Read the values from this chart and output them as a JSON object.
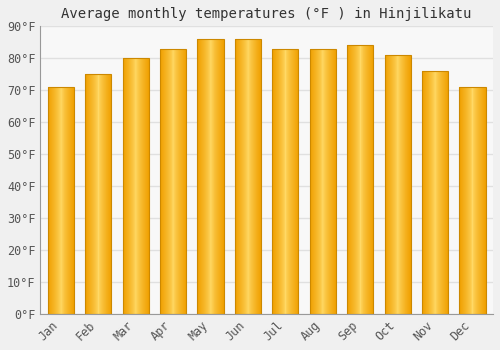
{
  "title": "Average monthly temperatures (°F ) in Hinjilikatu",
  "months": [
    "Jan",
    "Feb",
    "Mar",
    "Apr",
    "May",
    "Jun",
    "Jul",
    "Aug",
    "Sep",
    "Oct",
    "Nov",
    "Dec"
  ],
  "values": [
    71,
    75,
    80,
    83,
    86,
    86,
    83,
    83,
    84,
    81,
    76,
    71
  ],
  "bar_color_center": "#FFD966",
  "bar_color_edge": "#F0A500",
  "ylim": [
    0,
    90
  ],
  "yticks": [
    0,
    10,
    20,
    30,
    40,
    50,
    60,
    70,
    80,
    90
  ],
  "ytick_labels": [
    "0°F",
    "10°F",
    "20°F",
    "30°F",
    "40°F",
    "50°F",
    "60°F",
    "70°F",
    "80°F",
    "90°F"
  ],
  "background_color": "#f0f0f0",
  "plot_bg_color": "#f8f8f8",
  "grid_color": "#e0e0e0",
  "spine_color": "#999999",
  "title_fontsize": 10,
  "tick_fontsize": 8.5,
  "bar_width": 0.7
}
